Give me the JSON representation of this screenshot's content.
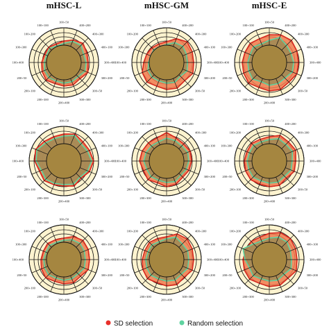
{
  "columns": [
    "mHSC-L",
    "mHSC-GM",
    "mHSC-E"
  ],
  "legend": [
    {
      "label": "SD selection",
      "color": "#e8302a"
    },
    {
      "label": "Random selection",
      "color": "#5fd3a0"
    }
  ],
  "colors": {
    "ring_fill_outer": "#fdf3cf",
    "ring_fill_inner": "#a58640",
    "sd_fill": "#f07a4f",
    "sd_line": "#d7261e",
    "random_fill": "#a28b55",
    "random_line": "#5fd3a0",
    "grid": "#111111"
  },
  "chart_data": {
    "type": "radar",
    "layout": "3x3 grid",
    "axis_labels": [
      "100+50",
      "400+200",
      "400+300",
      "400+100",
      "300+400",
      "300+200",
      "300+50",
      "300+300",
      "200+400",
      "200+300",
      "200+100",
      "200+50",
      "100+400",
      "100+300",
      "100+200",
      "100+100"
    ],
    "rlim": [
      0,
      1
    ],
    "ring_levels": [
      0.5,
      0.62,
      0.74,
      0.86,
      1.0
    ],
    "panels": [
      {
        "row": 0,
        "col": 0,
        "column": "mHSC-L",
        "sd": [
          0.62,
          0.7,
          0.78,
          0.72,
          0.7,
          0.75,
          0.66,
          0.7,
          0.68,
          0.66,
          0.72,
          0.68,
          0.64,
          0.6,
          0.62,
          0.58
        ],
        "random": [
          0.55,
          0.66,
          0.7,
          0.62,
          0.64,
          0.66,
          0.58,
          0.6,
          0.6,
          0.58,
          0.62,
          0.6,
          0.56,
          0.54,
          0.58,
          0.52
        ]
      },
      {
        "row": 0,
        "col": 1,
        "column": "mHSC-GM",
        "sd": [
          0.6,
          0.74,
          0.84,
          0.8,
          0.78,
          0.82,
          0.74,
          0.8,
          0.78,
          0.74,
          0.8,
          0.76,
          0.66,
          0.62,
          0.6,
          0.58
        ],
        "random": [
          0.52,
          0.62,
          0.66,
          0.62,
          0.6,
          0.64,
          0.56,
          0.62,
          0.6,
          0.58,
          0.6,
          0.58,
          0.52,
          0.5,
          0.52,
          0.5
        ]
      },
      {
        "row": 0,
        "col": 2,
        "column": "mHSC-E",
        "sd": [
          0.8,
          0.86,
          0.9,
          0.86,
          0.84,
          0.86,
          0.8,
          0.84,
          0.82,
          0.78,
          0.84,
          0.8,
          0.78,
          0.76,
          0.78,
          0.74
        ],
        "random": [
          0.64,
          0.78,
          0.7,
          0.68,
          0.7,
          0.72,
          0.64,
          0.66,
          0.66,
          0.6,
          0.68,
          0.64,
          0.62,
          0.6,
          0.64,
          0.58
        ]
      },
      {
        "row": 1,
        "col": 0,
        "column": "mHSC-L",
        "sd": [
          0.78,
          0.84,
          0.78,
          0.8,
          0.86,
          0.8,
          0.7,
          0.78,
          0.72,
          0.74,
          0.8,
          0.76,
          0.84,
          0.88,
          0.8,
          0.76
        ],
        "random": [
          0.72,
          0.8,
          0.7,
          0.74,
          0.8,
          0.74,
          0.66,
          0.72,
          0.68,
          0.7,
          0.74,
          0.7,
          0.8,
          0.84,
          0.74,
          0.7
        ]
      },
      {
        "row": 1,
        "col": 1,
        "column": "mHSC-GM",
        "sd": [
          0.82,
          0.72,
          0.7,
          0.74,
          0.72,
          0.7,
          0.66,
          0.72,
          0.74,
          0.68,
          0.76,
          0.72,
          0.78,
          0.76,
          0.74,
          0.72
        ],
        "random": [
          0.66,
          0.64,
          0.62,
          0.66,
          0.64,
          0.62,
          0.58,
          0.64,
          0.62,
          0.6,
          0.64,
          0.62,
          0.66,
          0.64,
          0.62,
          0.6
        ]
      },
      {
        "row": 1,
        "col": 2,
        "column": "mHSC-E",
        "sd": [
          0.7,
          0.8,
          0.78,
          0.82,
          0.76,
          0.78,
          0.7,
          0.76,
          0.74,
          0.72,
          0.76,
          0.74,
          0.72,
          0.7,
          0.72,
          0.68
        ],
        "random": [
          0.62,
          0.7,
          0.68,
          0.72,
          0.66,
          0.68,
          0.62,
          0.66,
          0.64,
          0.62,
          0.66,
          0.64,
          0.64,
          0.62,
          0.64,
          0.6
        ]
      },
      {
        "row": 2,
        "col": 0,
        "column": "mHSC-L",
        "sd": [
          0.62,
          0.72,
          0.78,
          0.76,
          0.74,
          0.76,
          0.68,
          0.72,
          0.7,
          0.68,
          0.74,
          0.7,
          0.66,
          0.64,
          0.66,
          0.62
        ],
        "random": [
          0.56,
          0.62,
          0.66,
          0.64,
          0.62,
          0.64,
          0.58,
          0.6,
          0.6,
          0.58,
          0.62,
          0.6,
          0.58,
          0.56,
          0.58,
          0.54
        ]
      },
      {
        "row": 2,
        "col": 1,
        "column": "mHSC-GM",
        "sd": [
          0.66,
          0.8,
          0.84,
          0.8,
          0.78,
          0.8,
          0.72,
          0.78,
          0.76,
          0.72,
          0.78,
          0.74,
          0.7,
          0.68,
          0.7,
          0.66
        ],
        "random": [
          0.6,
          0.7,
          0.64,
          0.66,
          0.64,
          0.66,
          0.6,
          0.64,
          0.62,
          0.6,
          0.64,
          0.62,
          0.6,
          0.58,
          0.6,
          0.56
        ]
      },
      {
        "row": 2,
        "col": 2,
        "column": "mHSC-E",
        "sd": [
          0.76,
          0.84,
          0.86,
          0.82,
          0.8,
          0.84,
          0.76,
          0.8,
          0.78,
          0.74,
          0.8,
          0.78,
          0.76,
          0.72,
          0.74,
          0.7
        ],
        "random": [
          0.62,
          0.7,
          0.72,
          0.66,
          0.64,
          0.68,
          0.6,
          0.64,
          0.62,
          0.6,
          0.66,
          0.62,
          0.7,
          0.82,
          0.64,
          0.58
        ]
      }
    ]
  }
}
